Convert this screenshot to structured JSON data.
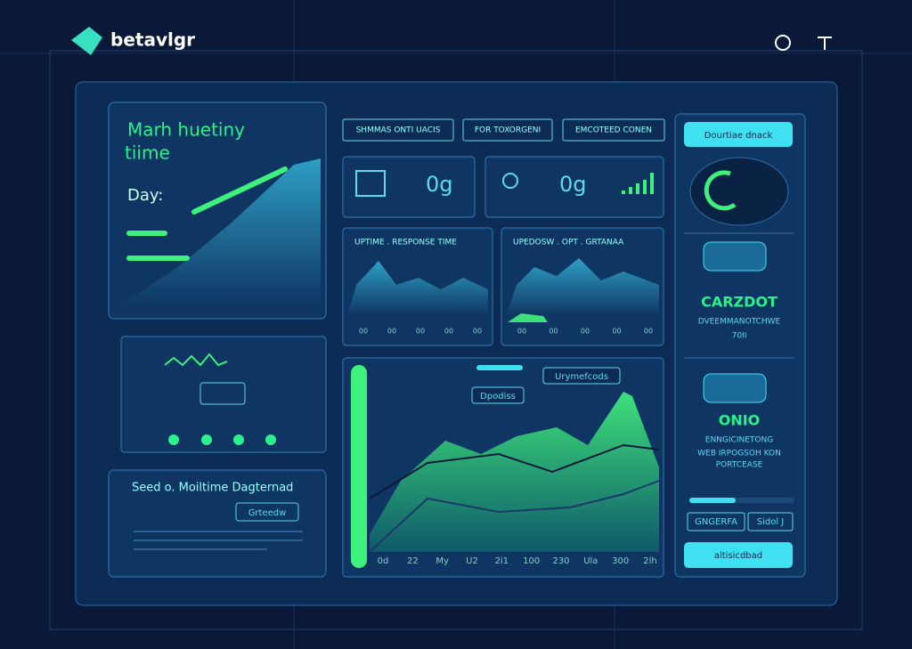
{
  "header": {
    "brand": "betavlgr"
  },
  "left_panel": {
    "title_line1": "Marh huetiny",
    "title_line2": "tiime",
    "label": "Day:"
  },
  "left_bottom": {
    "title": "Seed o. Moiltime Dagternad",
    "button": "Grteedw"
  },
  "tabs": [
    "SHMMAS ONTI UACIS",
    "FOR TOXORGENI",
    "EMCOTEED CONEN"
  ],
  "stat_cards": [
    "0g",
    "0g"
  ],
  "charts": [
    {
      "title": "UPTIME . RESPONSE TIME",
      "x_labels": [
        "00",
        "00",
        "00",
        "00",
        "00"
      ]
    },
    {
      "title": "UPEDOSW . OPT . GRTANAA",
      "x_labels": [
        "00",
        "00",
        "00",
        "00",
        "00"
      ]
    }
  ],
  "main_chart": {
    "badge_top": "Urymefcods",
    "badge_left": "Dpodiss",
    "x_labels": [
      "0d",
      "22",
      "My",
      "U2",
      "2i1",
      "100",
      "230",
      "Ula",
      "300",
      "2lh"
    ]
  },
  "right_panel": {
    "top_button": "Dourtiae dnack",
    "card1_title": "CARZDOT",
    "card1_line1": "DVEEMMANOTCHWE",
    "card1_line2": "70II",
    "card2_title": "ONIO",
    "card2_line1": "ENNGICINETONG",
    "card2_line2": "WEB IRPOGSOH KON",
    "card2_line3": "PORTCEASE",
    "small_buttons": [
      "GNGERFA",
      "Sidol J"
    ],
    "bottom_button": "altisicdbad"
  }
}
